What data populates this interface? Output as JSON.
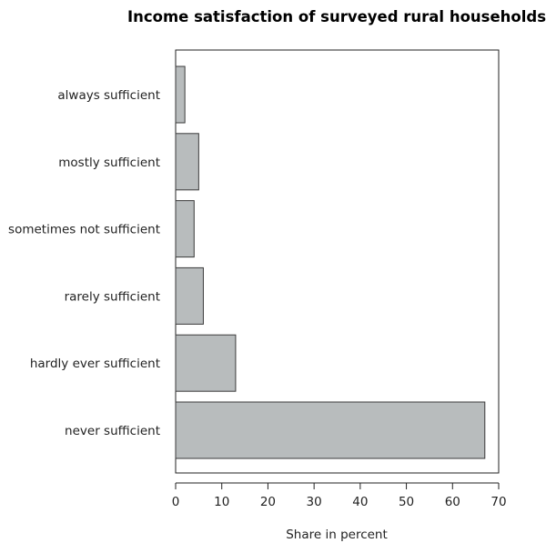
{
  "chart_data": {
    "type": "bar",
    "orientation": "horizontal",
    "title": "Income satisfaction of surveyed rural households",
    "xlabel": "Share in percent",
    "ylabel": "",
    "categories": [
      "always sufficient",
      "mostly sufficient",
      "sometimes not sufficient",
      "rarely sufficient",
      "hardly ever sufficient",
      "never sufficient"
    ],
    "values": [
      2,
      5,
      4,
      6,
      13,
      67
    ],
    "xlim": [
      0,
      70
    ],
    "xticks": [
      0,
      10,
      20,
      30,
      40,
      50,
      60,
      70
    ],
    "grid": false,
    "bar_color": "#b8bcbd",
    "bar_edge_color": "#3a3a3a"
  }
}
